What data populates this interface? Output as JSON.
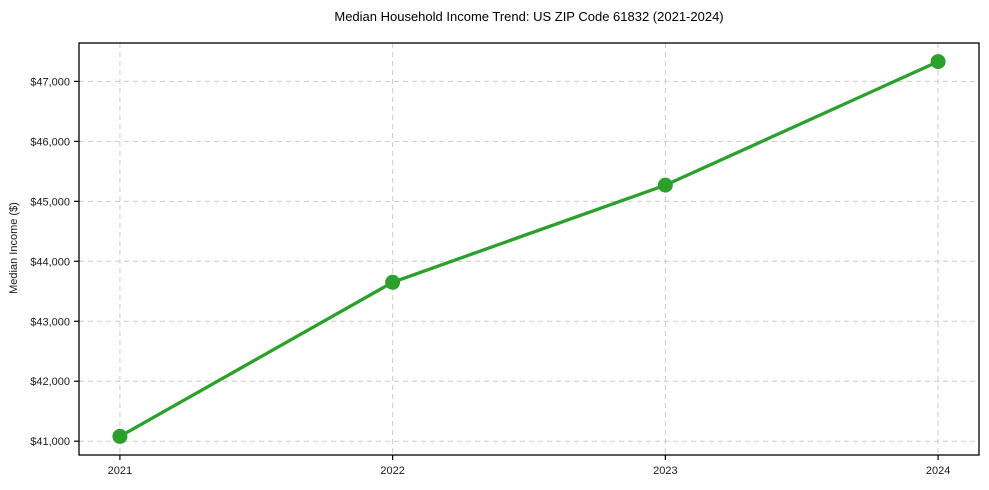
{
  "chart_data": {
    "type": "line",
    "title": "Median Household Income Trend: US ZIP Code 61832 (2021-2024)",
    "xlabel": "",
    "ylabel": "Median Income ($)",
    "x": [
      2021,
      2022,
      2023,
      2024
    ],
    "xtick_labels": [
      "2021",
      "2022",
      "2023",
      "2024"
    ],
    "series": [
      {
        "values": [
          41080,
          43650,
          45270,
          47330
        ],
        "color": "#2ca02c",
        "marker": "circle",
        "line_width": 3.3,
        "marker_radius": 7.5
      }
    ],
    "yticks": [
      41000,
      42000,
      43000,
      44000,
      45000,
      46000,
      47000
    ],
    "ytick_labels": [
      "$41,000",
      "$42,000",
      "$43,000",
      "$44,000",
      "$45,000",
      "$46,000",
      "$47,000"
    ],
    "ylim": [
      40770,
      47640
    ],
    "grid": true,
    "grid_color": "#cccccc",
    "axis_color": "#000000",
    "text_color": "#1a1a1a",
    "background_color": "#ffffff",
    "legend": null
  }
}
